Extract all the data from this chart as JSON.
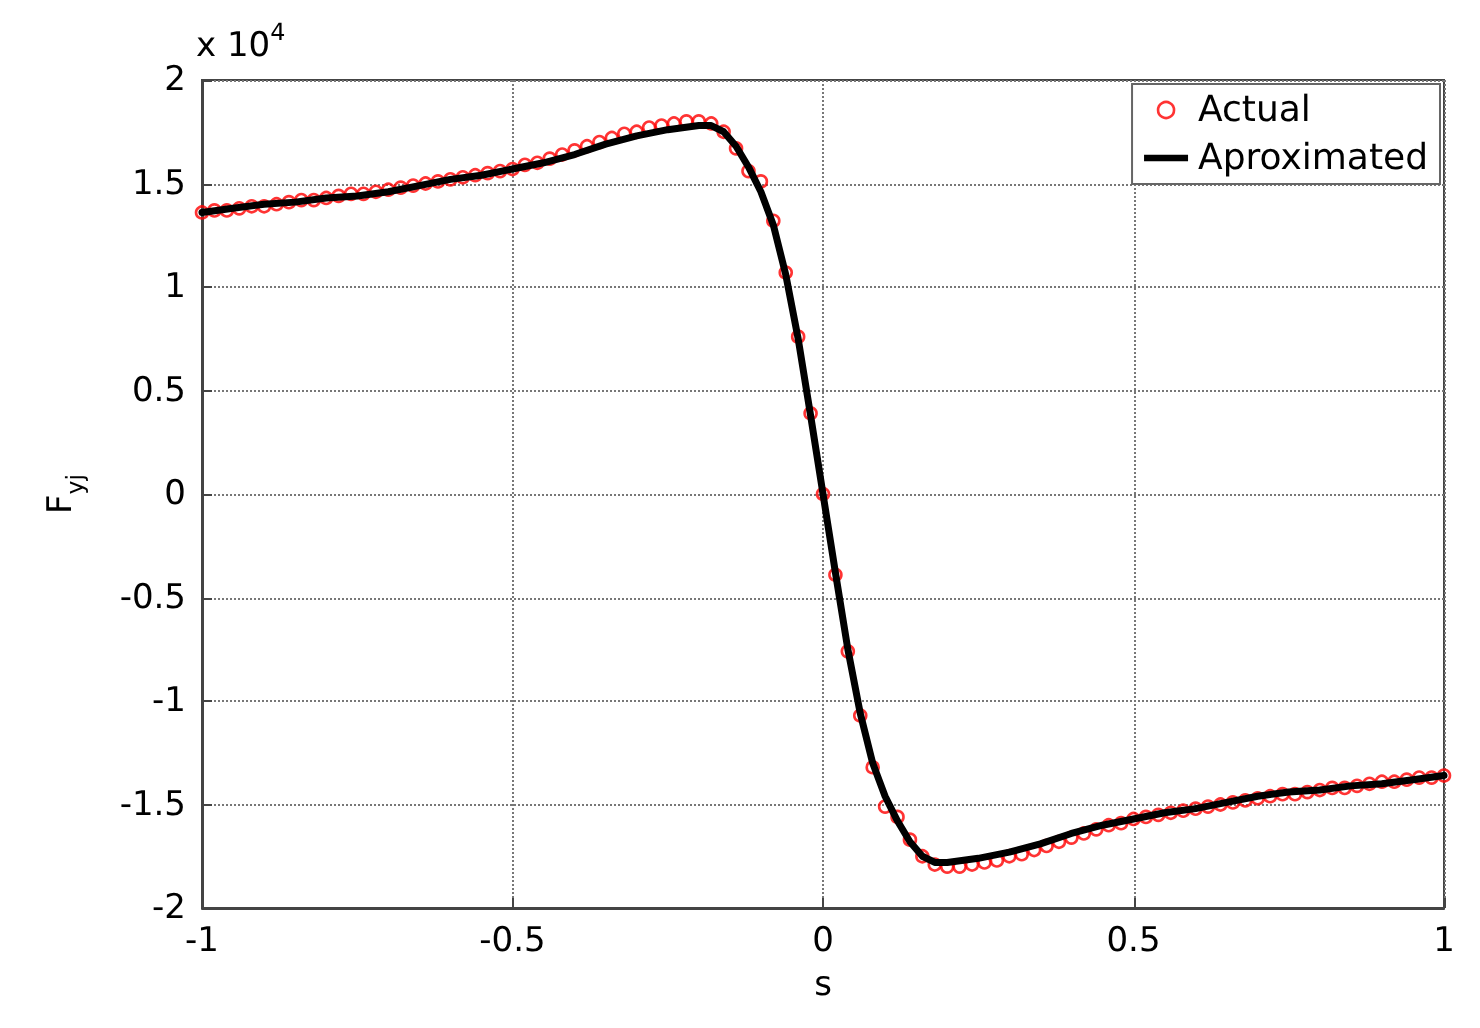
{
  "chart_data": {
    "type": "line",
    "xlabel": "s",
    "ylabel": "F$_{yj}$",
    "annotations": [
      "x 10$^{4}$"
    ],
    "xlim": [
      -1,
      1
    ],
    "xticks": [
      -1,
      -0.5,
      0,
      0.5,
      1
    ],
    "ylim": [
      -2,
      2
    ],
    "yticks": [
      -2,
      -1.5,
      -1,
      -0.5,
      0,
      0.5,
      1,
      1.5,
      2
    ],
    "grid": true,
    "legend": "top right",
    "series": [
      {
        "name": "Actual",
        "type": "scatter",
        "marker": "circle",
        "color": "#ff0000",
        "x": [
          -1,
          -0.98,
          -0.96,
          -0.94,
          -0.92,
          -0.9,
          -0.88,
          -0.86,
          -0.84,
          -0.82,
          -0.8,
          -0.78,
          -0.76,
          -0.74,
          -0.72,
          -0.7,
          -0.68,
          -0.66,
          -0.64,
          -0.62,
          -0.6,
          -0.58,
          -0.56,
          -0.54,
          -0.52,
          -0.5,
          -0.48,
          -0.46,
          -0.44,
          -0.42,
          -0.4,
          -0.38,
          -0.36,
          -0.34,
          -0.32,
          -0.3,
          -0.28,
          -0.26,
          -0.24,
          -0.22,
          -0.2,
          -0.18,
          -0.16,
          -0.14,
          -0.12,
          -0.1,
          -0.08,
          -0.06,
          -0.04,
          -0.02,
          0,
          0.02,
          0.04,
          0.06,
          0.08,
          0.1,
          0.12,
          0.14,
          0.16,
          0.18,
          0.2,
          0.22,
          0.24,
          0.26,
          0.28,
          0.3,
          0.32,
          0.34,
          0.36,
          0.38,
          0.4,
          0.42,
          0.44,
          0.46,
          0.48,
          0.5,
          0.52,
          0.54,
          0.56,
          0.58,
          0.6,
          0.62,
          0.64,
          0.66,
          0.68,
          0.7,
          0.72,
          0.74,
          0.76,
          0.78,
          0.8,
          0.82,
          0.84,
          0.86,
          0.88,
          0.9,
          0.92,
          0.94,
          0.96,
          0.98,
          1
        ],
        "values": [
          1.36,
          1.37,
          1.37,
          1.38,
          1.39,
          1.39,
          1.4,
          1.41,
          1.42,
          1.42,
          1.43,
          1.44,
          1.45,
          1.45,
          1.46,
          1.47,
          1.48,
          1.49,
          1.5,
          1.51,
          1.52,
          1.53,
          1.54,
          1.55,
          1.56,
          1.57,
          1.59,
          1.6,
          1.62,
          1.64,
          1.66,
          1.68,
          1.7,
          1.72,
          1.74,
          1.75,
          1.77,
          1.78,
          1.79,
          1.8,
          1.8,
          1.79,
          1.75,
          1.67,
          1.56,
          1.51,
          1.32,
          1.07,
          0.76,
          0.39,
          0,
          -0.39,
          -0.76,
          -1.07,
          -1.32,
          -1.51,
          -1.56,
          -1.67,
          -1.75,
          -1.79,
          -1.8,
          -1.8,
          -1.79,
          -1.78,
          -1.77,
          -1.75,
          -1.74,
          -1.72,
          -1.7,
          -1.68,
          -1.66,
          -1.64,
          -1.62,
          -1.6,
          -1.59,
          -1.57,
          -1.56,
          -1.55,
          -1.54,
          -1.53,
          -1.52,
          -1.51,
          -1.5,
          -1.49,
          -1.48,
          -1.47,
          -1.46,
          -1.45,
          -1.45,
          -1.44,
          -1.43,
          -1.42,
          -1.42,
          -1.41,
          -1.4,
          -1.39,
          -1.39,
          -1.38,
          -1.37,
          -1.37,
          -1.36
        ]
      },
      {
        "name": "Aproximated",
        "marker": "none",
        "line_style": "solid",
        "color": "#000000",
        "x": [
          -1,
          -0.95,
          -0.9,
          -0.85,
          -0.8,
          -0.75,
          -0.7,
          -0.65,
          -0.6,
          -0.55,
          -0.5,
          -0.45,
          -0.4,
          -0.35,
          -0.3,
          -0.25,
          -0.2,
          -0.18,
          -0.16,
          -0.14,
          -0.12,
          -0.1,
          -0.08,
          -0.06,
          -0.04,
          -0.02,
          0,
          0.02,
          0.04,
          0.06,
          0.08,
          0.1,
          0.12,
          0.14,
          0.16,
          0.18,
          0.2,
          0.25,
          0.3,
          0.35,
          0.4,
          0.45,
          0.5,
          0.55,
          0.6,
          0.65,
          0.7,
          0.75,
          0.8,
          0.85,
          0.9,
          0.95,
          1
        ],
        "values": [
          1.36,
          1.38,
          1.4,
          1.41,
          1.43,
          1.44,
          1.46,
          1.49,
          1.52,
          1.54,
          1.57,
          1.6,
          1.64,
          1.69,
          1.73,
          1.76,
          1.78,
          1.78,
          1.75,
          1.68,
          1.58,
          1.46,
          1.3,
          1.06,
          0.75,
          0.38,
          0,
          -0.38,
          -0.75,
          -1.06,
          -1.3,
          -1.46,
          -1.58,
          -1.68,
          -1.75,
          -1.78,
          -1.78,
          -1.76,
          -1.73,
          -1.69,
          -1.64,
          -1.6,
          -1.57,
          -1.54,
          -1.52,
          -1.49,
          -1.46,
          -1.44,
          -1.43,
          -1.41,
          -1.4,
          -1.38,
          -1.36
        ]
      }
    ]
  }
}
